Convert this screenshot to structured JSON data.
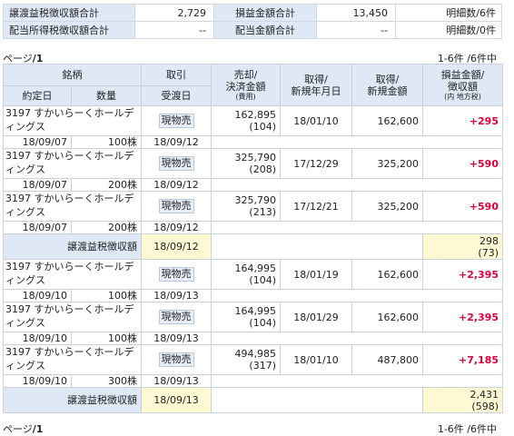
{
  "summary": {
    "row1": {
      "label1": "譲渡益税徴収額合計",
      "value1": "2,729",
      "label2": "損益金額合計",
      "value2": "13,450",
      "count": "明細数/6件"
    },
    "row2": {
      "label1": "配当所得税徴収額合計",
      "value1": "--",
      "label2": "配当金額合計",
      "value2": "--",
      "count": "明細数/0件"
    }
  },
  "pager": {
    "page": "ページ",
    "page_num": "/1",
    "range": "1-6件 /6件中"
  },
  "headers": {
    "meigara": "銘柄",
    "torihiki": "取引",
    "baikyaku1": "売却/",
    "baikyaku2": "決済金額",
    "baikyaku3": "(費用)",
    "shutoku1": "取得/",
    "shutoku2": "新規年月日",
    "shutoku_amt1": "取得/",
    "shutoku_amt2": "新規金額",
    "pl1": "損益金額/",
    "pl2": "徴収額",
    "pl3": "(内 地方税)",
    "yakujo": "約定日",
    "suryo": "数量",
    "ukewatashi": "受渡日"
  },
  "rows": [
    {
      "name": "3197 すかいらーくホールディングス",
      "trade": "現物売",
      "amount": "162,895",
      "fee": "(104)",
      "acq_date": "18/01/10",
      "acq_amt": "162,600",
      "pl": "+295",
      "exec_date": "18/09/07",
      "qty": "100株",
      "settle": "18/09/12"
    },
    {
      "name": "3197 すかいらーくホールディングス",
      "trade": "現物売",
      "amount": "325,790",
      "fee": "(208)",
      "acq_date": "17/12/29",
      "acq_amt": "325,200",
      "pl": "+590",
      "exec_date": "18/09/07",
      "qty": "200株",
      "settle": "18/09/12"
    },
    {
      "name": "3197 すかいらーくホールディングス",
      "trade": "現物売",
      "amount": "325,790",
      "fee": "(213)",
      "acq_date": "17/12/21",
      "acq_amt": "325,200",
      "pl": "+590",
      "exec_date": "18/09/07",
      "qty": "200株",
      "settle": "18/09/12"
    },
    {
      "name": "3197 すかいらーくホールディングス",
      "trade": "現物売",
      "amount": "164,995",
      "fee": "(104)",
      "acq_date": "18/01/19",
      "acq_amt": "162,600",
      "pl": "+2,395",
      "exec_date": "18/09/10",
      "qty": "100株",
      "settle": "18/09/13"
    },
    {
      "name": "3197 すかいらーくホールディングス",
      "trade": "現物売",
      "amount": "164,995",
      "fee": "(104)",
      "acq_date": "18/01/29",
      "acq_amt": "162,600",
      "pl": "+2,395",
      "exec_date": "18/09/10",
      "qty": "100株",
      "settle": "18/09/13"
    },
    {
      "name": "3197 すかいらーくホールディングス",
      "trade": "現物売",
      "amount": "494,985",
      "fee": "(317)",
      "acq_date": "18/01/10",
      "acq_amt": "487,800",
      "pl": "+7,185",
      "exec_date": "18/09/10",
      "qty": "300株",
      "settle": "18/09/13"
    }
  ],
  "subtotals": [
    {
      "label": "譲渡益税徴収額",
      "date": "18/09/12",
      "value": "298",
      "local": "(73)"
    },
    {
      "label": "譲渡益税徴収額",
      "date": "18/09/13",
      "value": "2,431",
      "local": "(598)"
    }
  ]
}
